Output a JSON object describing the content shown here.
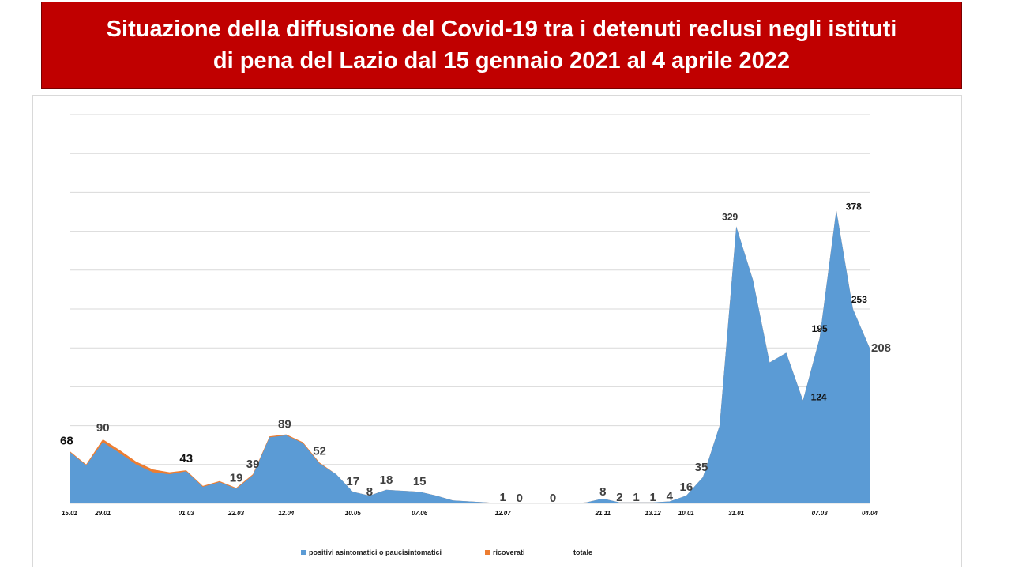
{
  "title": {
    "line1": "Situazione della diffusione del Covid-19 tra i detenuti reclusi negli istituti",
    "line2": "di pena del Lazio dal 15 gennaio 2021 al 4 aprile 2022"
  },
  "colors": {
    "banner": "#c00000",
    "series_positivi": "#5b9bd5",
    "series_ricoverati": "#ed7d31",
    "grid": "#d9d9d9"
  },
  "legend": {
    "items": [
      {
        "label": "positivi asintomatici o paucisintomatici",
        "color": "#5b9bd5"
      },
      {
        "label": "ricoverati",
        "color": "#ed7d31"
      },
      {
        "label": "totale",
        "color": ""
      }
    ]
  },
  "chart_data": {
    "type": "area",
    "stacked": true,
    "ylim": [
      0,
      400
    ],
    "gridlines": [
      0,
      40,
      80,
      120,
      160,
      200,
      240,
      280,
      320,
      360,
      400
    ],
    "grid": true,
    "legend_position": "bottom",
    "x": [
      0,
      1,
      2,
      3,
      4,
      5,
      6,
      7,
      8,
      9,
      10,
      11,
      12,
      13,
      14,
      15,
      16,
      17,
      18,
      19,
      20,
      21,
      22,
      23,
      24,
      25,
      26,
      27,
      28,
      29,
      30,
      31,
      32,
      33,
      34,
      35,
      36,
      37,
      38,
      39,
      40,
      41,
      42,
      43,
      44,
      45,
      46,
      47,
      48
    ],
    "x_tick_labels": [
      {
        "x": 0,
        "label": "15.01"
      },
      {
        "x": 2,
        "label": "29.01"
      },
      {
        "x": 7,
        "label": "01.03"
      },
      {
        "x": 10,
        "label": "22.03"
      },
      {
        "x": 13,
        "label": "12.04"
      },
      {
        "x": 17,
        "label": "10.05"
      },
      {
        "x": 21,
        "label": "07.06"
      },
      {
        "x": 26,
        "label": "12.07"
      },
      {
        "x": 32,
        "label": "21.11"
      },
      {
        "x": 35,
        "label": "13.12"
      },
      {
        "x": 37,
        "label": "10.01"
      },
      {
        "x": 40,
        "label": "31.01"
      },
      {
        "x": 45,
        "label": "07.03"
      },
      {
        "x": 48,
        "label": "04.04"
      }
    ],
    "series": [
      {
        "name": "positivi asintomatici o paucisintomatici",
        "values": [
          53,
          39,
          63,
          52,
          40,
          32,
          30,
          33,
          17,
          22,
          15,
          29,
          68,
          70,
          62,
          41,
          30,
          12,
          8,
          14,
          13,
          12,
          8,
          3,
          2,
          1,
          0,
          0,
          0,
          0,
          0,
          1,
          5,
          1,
          1,
          1,
          2,
          8,
          27,
          80,
          285,
          230,
          145,
          155,
          106,
          170,
          302,
          200,
          160
        ]
      },
      {
        "name": "ricoverati",
        "values": [
          1,
          1,
          3,
          3,
          3,
          3,
          2,
          1,
          1,
          1,
          1,
          1,
          1,
          1,
          1,
          1,
          0,
          0,
          0,
          0,
          0,
          0,
          0,
          0,
          0,
          0,
          0,
          0,
          0,
          0,
          0,
          0,
          0,
          0,
          0,
          0,
          0,
          0,
          0,
          0,
          0,
          0,
          0,
          0,
          0,
          0,
          0,
          0,
          0
        ]
      }
    ],
    "data_labels": [
      {
        "x": 0,
        "value": "68",
        "y": 54,
        "size": 15,
        "bold": true,
        "color": "#111111",
        "anchor": "start",
        "dx": -12,
        "dy": -8
      },
      {
        "x": 2,
        "value": "90",
        "y": 66,
        "size": 15,
        "bold": false,
        "color": "#404040",
        "anchor": "middle",
        "dx": 0,
        "dy": -10
      },
      {
        "x": 7,
        "value": "43",
        "y": 34,
        "size": 15,
        "bold": true,
        "color": "#111111",
        "anchor": "middle",
        "dx": 0,
        "dy": -10
      },
      {
        "x": 10,
        "value": "19",
        "y": 16,
        "size": 15,
        "bold": false,
        "color": "#404040",
        "anchor": "middle",
        "dx": 0,
        "dy": -8
      },
      {
        "x": 11,
        "value": "39",
        "y": 30,
        "size": 15,
        "bold": false,
        "color": "#404040",
        "anchor": "middle",
        "dx": 0,
        "dy": -8
      },
      {
        "x": 13,
        "value": "89",
        "y": 71,
        "size": 15,
        "bold": false,
        "color": "#404040",
        "anchor": "middle",
        "dx": -2,
        "dy": -8
      },
      {
        "x": 15,
        "value": "52",
        "y": 42,
        "size": 15,
        "bold": false,
        "color": "#404040",
        "anchor": "middle",
        "dx": 0,
        "dy": -10
      },
      {
        "x": 17,
        "value": "17",
        "y": 12,
        "size": 15,
        "bold": false,
        "color": "#404040",
        "anchor": "middle",
        "dx": 0,
        "dy": -8
      },
      {
        "x": 18,
        "value": "8",
        "y": 8,
        "size": 15,
        "bold": false,
        "color": "#404040",
        "anchor": "middle",
        "dx": 0,
        "dy": 0
      },
      {
        "x": 19,
        "value": "18",
        "y": 14,
        "size": 15,
        "bold": false,
        "color": "#404040",
        "anchor": "middle",
        "dx": 0,
        "dy": -8
      },
      {
        "x": 21,
        "value": "15",
        "y": 12,
        "size": 15,
        "bold": false,
        "color": "#404040",
        "anchor": "middle",
        "dx": 0,
        "dy": -8
      },
      {
        "x": 26,
        "value": "1",
        "y": 1,
        "size": 15,
        "bold": false,
        "color": "#404040",
        "anchor": "middle",
        "dx": 0,
        "dy": -2
      },
      {
        "x": 27,
        "value": "0",
        "y": 0,
        "size": 15,
        "bold": false,
        "color": "#404040",
        "anchor": "middle",
        "dx": 0,
        "dy": -2
      },
      {
        "x": 29,
        "value": "0",
        "y": 0,
        "size": 15,
        "bold": false,
        "color": "#404040",
        "anchor": "middle",
        "dx": 0,
        "dy": -2
      },
      {
        "x": 32,
        "value": "8",
        "y": 5,
        "size": 15,
        "bold": false,
        "color": "#404040",
        "anchor": "middle",
        "dx": 0,
        "dy": -4
      },
      {
        "x": 33,
        "value": "2",
        "y": 1,
        "size": 15,
        "bold": false,
        "color": "#404040",
        "anchor": "middle",
        "dx": 0,
        "dy": -2
      },
      {
        "x": 34,
        "value": "1",
        "y": 1,
        "size": 15,
        "bold": false,
        "color": "#404040",
        "anchor": "middle",
        "dx": 0,
        "dy": -2
      },
      {
        "x": 35,
        "value": "1",
        "y": 1,
        "size": 15,
        "bold": false,
        "color": "#404040",
        "anchor": "middle",
        "dx": 0,
        "dy": -2
      },
      {
        "x": 36,
        "value": "4",
        "y": 2,
        "size": 15,
        "bold": false,
        "color": "#404040",
        "anchor": "middle",
        "dx": 0,
        "dy": -2
      },
      {
        "x": 37,
        "value": "16",
        "y": 8,
        "size": 15,
        "bold": false,
        "color": "#404040",
        "anchor": "middle",
        "dx": 0,
        "dy": -6
      },
      {
        "x": 38,
        "value": "35",
        "y": 27,
        "size": 15,
        "bold": false,
        "color": "#404040",
        "anchor": "middle",
        "dx": -2,
        "dy": -8
      },
      {
        "x": 40,
        "value": "329",
        "y": 285,
        "size": 12,
        "bold": true,
        "color": "#333333",
        "anchor": "middle",
        "dx": -8,
        "dy": -8
      },
      {
        "x": 44,
        "value": "124",
        "y": 106,
        "size": 12,
        "bold": true,
        "color": "#111111",
        "anchor": "start",
        "dx": 10,
        "dy": 0
      },
      {
        "x": 45,
        "value": "195",
        "y": 170,
        "size": 12,
        "bold": true,
        "color": "#111111",
        "anchor": "middle",
        "dx": 0,
        "dy": -8
      },
      {
        "x": 46,
        "value": "378",
        "y": 302,
        "size": 12,
        "bold": true,
        "color": "#111111",
        "anchor": "start",
        "dx": 12,
        "dy": 0
      },
      {
        "x": 47,
        "value": "253",
        "y": 200,
        "size": 12,
        "bold": true,
        "color": "#111111",
        "anchor": "middle",
        "dx": 8,
        "dy": -8
      },
      {
        "x": 48,
        "value": "208",
        "y": 160,
        "size": 15,
        "bold": true,
        "color": "#404040",
        "anchor": "start",
        "dx": 2,
        "dy": 5
      }
    ]
  }
}
